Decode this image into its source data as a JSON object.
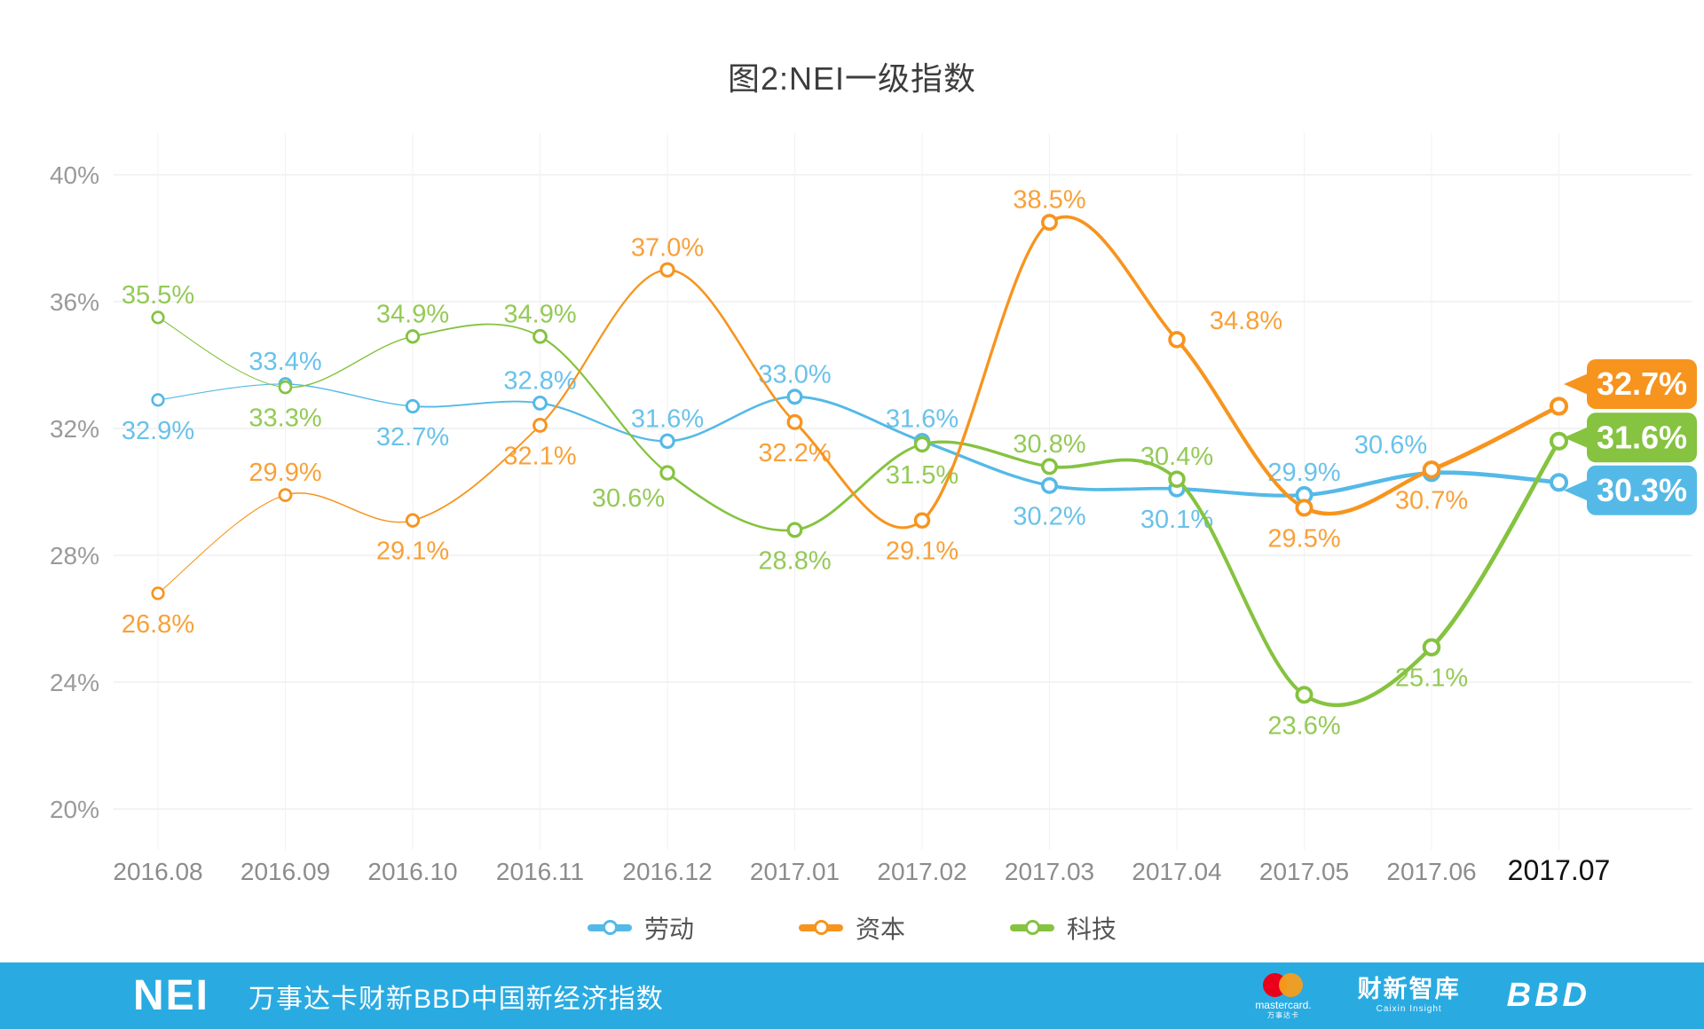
{
  "title": "图2:NEI一级指数",
  "chart_data": {
    "type": "line",
    "title": "图2:NEI一级指数",
    "categories": [
      "2016.08",
      "2016.09",
      "2016.10",
      "2016.11",
      "2016.12",
      "2017.01",
      "2017.02",
      "2017.03",
      "2017.04",
      "2017.05",
      "2017.06",
      "2017.07"
    ],
    "y_ticks": [
      "40%",
      "36%",
      "32%",
      "28%",
      "24%",
      "20%"
    ],
    "y_tick_values": [
      40,
      36,
      32,
      28,
      24,
      20
    ],
    "ylim": [
      20,
      40
    ],
    "grid": true,
    "legend_position": "bottom",
    "series": [
      {
        "name": "劳动",
        "color": "#54b9e7",
        "values": [
          32.9,
          33.4,
          32.7,
          32.8,
          31.6,
          33.0,
          31.6,
          30.2,
          30.1,
          29.9,
          30.6,
          30.3
        ],
        "labels": [
          "32.9%",
          "33.4%",
          "32.7%",
          "32.8%",
          "31.6%",
          "33.0%",
          "31.6%",
          "30.2%",
          "30.1%",
          "29.9%",
          "30.6%",
          null
        ],
        "label_pos": [
          "below",
          "above",
          "below",
          "above",
          "above",
          "above",
          "above",
          "below",
          "below",
          "above",
          "left-above",
          null
        ],
        "end_badge": "30.3%"
      },
      {
        "name": "资本",
        "color": "#f7941e",
        "values": [
          26.8,
          29.9,
          29.1,
          32.1,
          37.0,
          32.2,
          29.1,
          38.5,
          34.8,
          29.5,
          30.7,
          32.7
        ],
        "labels": [
          "26.8%",
          "29.9%",
          "29.1%",
          "32.1%",
          "37.0%",
          "32.2%",
          "29.1%",
          "38.5%",
          "34.8%",
          "29.5%",
          "30.7%",
          null
        ],
        "label_pos": [
          "below",
          "above",
          "below",
          "below",
          "above",
          "below",
          "below",
          "above",
          "right-above",
          "below",
          "below",
          null
        ],
        "end_badge": "32.7%"
      },
      {
        "name": "科技",
        "color": "#85c340",
        "values": [
          35.5,
          33.3,
          34.9,
          34.9,
          30.6,
          28.8,
          31.5,
          30.8,
          30.4,
          23.6,
          25.1,
          31.6
        ],
        "labels": [
          "35.5%",
          "33.3%",
          "34.9%",
          "34.9%",
          "30.6%",
          "28.8%",
          "31.5%",
          "30.8%",
          "30.4%",
          "23.6%",
          "25.1%",
          null
        ],
        "label_pos": [
          "above",
          "below",
          "above",
          "above",
          "left-below",
          "below",
          "below",
          "above",
          "above",
          "below",
          "below",
          null
        ],
        "end_badge": "31.6%"
      }
    ]
  },
  "footer": {
    "bar_color": "#29abe2",
    "nei": "NEI",
    "subtitle": "万事达卡财新BBD中国新经济指数",
    "mastercard": {
      "word": "mastercard.",
      "sub": "万事达卡"
    },
    "caixin": {
      "name": "财新智库",
      "sub": "Caixin Insight"
    },
    "bbd": "BBD"
  }
}
